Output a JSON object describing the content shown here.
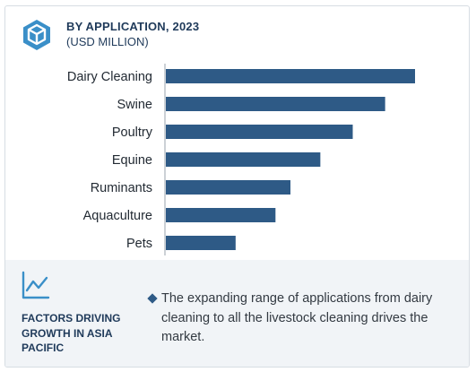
{
  "header": {
    "title": "BY APPLICATION, 2023",
    "subtitle": "(USD MILLION)",
    "icon": "hexagon-cube-icon"
  },
  "chart_data": {
    "type": "bar",
    "orientation": "horizontal",
    "title": "BY APPLICATION, 2023",
    "subtitle": "(USD MILLION)",
    "categories": [
      "Dairy Cleaning",
      "Swine",
      "Poultry",
      "Equine",
      "Ruminants",
      "Aquaculture",
      "Pets"
    ],
    "values": [
      100,
      88,
      75,
      62,
      50,
      44,
      28
    ],
    "xlim": [
      0,
      100
    ],
    "grid": false,
    "legend": "none",
    "bar_color": "#2e5a86",
    "axis_color": "#9aa3ad"
  },
  "factors": {
    "icon": "trend-line-icon",
    "title": "FACTORS DRIVING GROWTH IN ASIA PACIFIC",
    "items": [
      "The expanding range of applications from dairy cleaning to all the livestock cleaning drives the market."
    ]
  },
  "colors": {
    "accent": "#2e5a86",
    "heading": "#1f3a5a",
    "panel": "#f1f4f7"
  }
}
